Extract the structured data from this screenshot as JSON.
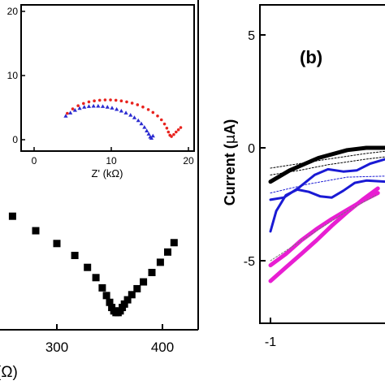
{
  "chart_data": [
    {
      "id": "left-main",
      "type": "scatter",
      "xlabel": "(Ω)",
      "x_ticks": [
        300,
        400
      ],
      "x_tick_labels": [
        "300",
        "400"
      ],
      "series": [
        {
          "color": "#000000",
          "marker": "square",
          "points": [
            [
              258,
              58
            ],
            [
              280,
              49.5
            ],
            [
              300,
              42
            ],
            [
              317,
              35
            ],
            [
              329,
              28
            ],
            [
              337,
              22
            ],
            [
              343,
              16
            ],
            [
              347,
              11.5
            ],
            [
              350,
              7.5
            ],
            [
              352,
              4.5
            ],
            [
              354,
              2.5
            ],
            [
              356,
              1.5
            ],
            [
              358,
              1.5
            ],
            [
              360,
              2.5
            ],
            [
              362,
              4.5
            ],
            [
              364,
              6.5
            ],
            [
              367,
              9
            ],
            [
              371,
              12
            ],
            [
              376,
              15.5
            ],
            [
              382,
              19.5
            ],
            [
              390,
              25
            ],
            [
              398,
              31
            ],
            [
              405,
              37
            ],
            [
              411,
              42.5
            ]
          ]
        }
      ]
    },
    {
      "id": "inset",
      "type": "scatter",
      "xlabel": "Z' (kΩ)",
      "x_ticks": [
        0,
        10,
        20
      ],
      "x_tick_labels": [
        "0",
        "10",
        "20"
      ],
      "y_ticks": [
        0,
        10,
        20
      ],
      "y_tick_labels": [
        "0",
        "10",
        "20"
      ],
      "xlim": [
        -2,
        21
      ],
      "ylim": [
        -1.8,
        21
      ],
      "series": [
        {
          "color": "#e8231e",
          "marker": "circle",
          "points": [
            [
              4.3,
              4.1
            ],
            [
              5.0,
              4.8
            ],
            [
              5.7,
              5.3
            ],
            [
              6.4,
              5.65
            ],
            [
              7.1,
              5.9
            ],
            [
              7.8,
              6.05
            ],
            [
              8.5,
              6.15
            ],
            [
              9.2,
              6.2
            ],
            [
              9.9,
              6.2
            ],
            [
              10.6,
              6.15
            ],
            [
              11.3,
              6.05
            ],
            [
              12.0,
              5.9
            ],
            [
              12.7,
              5.7
            ],
            [
              13.4,
              5.45
            ],
            [
              14.1,
              5.1
            ],
            [
              14.8,
              4.7
            ],
            [
              15.4,
              4.25
            ],
            [
              16.0,
              3.7
            ],
            [
              16.5,
              3.1
            ],
            [
              16.9,
              2.45
            ],
            [
              17.2,
              1.8
            ],
            [
              17.4,
              1.2
            ],
            [
              17.6,
              0.7
            ],
            [
              17.8,
              0.5
            ],
            [
              18.1,
              0.8
            ],
            [
              18.4,
              1.2
            ],
            [
              18.7,
              1.55
            ],
            [
              19.0,
              1.9
            ]
          ]
        },
        {
          "color": "#2b2bd0",
          "marker": "triangle",
          "points": [
            [
              4.1,
              3.7
            ],
            [
              4.7,
              4.2
            ],
            [
              5.3,
              4.6
            ],
            [
              5.9,
              4.9
            ],
            [
              6.5,
              5.1
            ],
            [
              7.1,
              5.2
            ],
            [
              7.7,
              5.25
            ],
            [
              8.3,
              5.25
            ],
            [
              8.9,
              5.2
            ],
            [
              9.5,
              5.1
            ],
            [
              10.1,
              4.95
            ],
            [
              10.7,
              4.75
            ],
            [
              11.3,
              4.5
            ],
            [
              11.9,
              4.2
            ],
            [
              12.5,
              3.85
            ],
            [
              13.0,
              3.45
            ],
            [
              13.5,
              3.0
            ],
            [
              13.9,
              2.5
            ],
            [
              14.3,
              1.95
            ],
            [
              14.6,
              1.4
            ],
            [
              14.85,
              0.9
            ],
            [
              15.05,
              0.45
            ],
            [
              15.2,
              0.25
            ],
            [
              15.4,
              0.6
            ]
          ]
        }
      ]
    },
    {
      "id": "right-b",
      "type": "line",
      "panel_label": "(b)",
      "ylabel_prefix": "Current (",
      "ylabel_mu": "μ",
      "ylabel_suffix": "A)",
      "x_ticks": [
        -1
      ],
      "x_tick_labels": [
        "-1"
      ],
      "y_ticks": [
        5,
        0,
        -5
      ],
      "y_tick_labels": [
        "5",
        "0",
        "-5"
      ],
      "xlim": [
        -1.1,
        -0.4
      ],
      "ylim": [
        -7.8,
        6.9
      ],
      "series": [
        {
          "color": "#000000",
          "width": 5,
          "points": [
            [
              -1.0,
              -1.5
            ],
            [
              -0.9,
              -1.0
            ],
            [
              -0.75,
              -0.45
            ],
            [
              -0.6,
              -0.1
            ],
            [
              -0.5,
              0.0
            ],
            [
              -0.4,
              0.0
            ]
          ]
        },
        {
          "color": "#000000",
          "width": 1,
          "dash": "2,2",
          "points": [
            [
              -1.0,
              -0.9
            ],
            [
              -0.85,
              -0.7
            ],
            [
              -0.7,
              -0.5
            ],
            [
              -0.5,
              -0.25
            ],
            [
              -0.4,
              -0.15
            ]
          ]
        },
        {
          "color": "#000000",
          "width": 1,
          "dash": "2,2",
          "points": [
            [
              -1.0,
              -1.2
            ],
            [
              -0.85,
              -1.0
            ],
            [
              -0.7,
              -0.75
            ],
            [
              -0.5,
              -0.5
            ],
            [
              -0.4,
              -0.4
            ]
          ]
        },
        {
          "color": "#1a1ad4",
          "width": 3,
          "points": [
            [
              -1.0,
              -2.3
            ],
            [
              -0.93,
              -2.2
            ],
            [
              -0.85,
              -1.75
            ],
            [
              -0.77,
              -1.2
            ],
            [
              -0.7,
              -0.95
            ],
            [
              -0.62,
              -1.05
            ],
            [
              -0.55,
              -1.0
            ],
            [
              -0.48,
              -0.7
            ],
            [
              -0.4,
              -0.5
            ]
          ]
        },
        {
          "color": "#1a1ad4",
          "width": 3,
          "points": [
            [
              -1.0,
              -3.7
            ],
            [
              -0.97,
              -2.8
            ],
            [
              -0.92,
              -2.1
            ],
            [
              -0.86,
              -1.85
            ],
            [
              -0.8,
              -1.95
            ],
            [
              -0.74,
              -2.15
            ],
            [
              -0.68,
              -2.2
            ],
            [
              -0.62,
              -1.9
            ],
            [
              -0.56,
              -1.55
            ],
            [
              -0.5,
              -1.45
            ],
            [
              -0.4,
              -1.5
            ]
          ]
        },
        {
          "color": "#1a1ad4",
          "width": 1,
          "dash": "2,2",
          "points": [
            [
              -1.0,
              -2.0
            ],
            [
              -0.8,
              -1.6
            ],
            [
              -0.6,
              -1.3
            ],
            [
              -0.4,
              -1.25
            ]
          ]
        },
        {
          "color": "#e81ed2",
          "width": 5,
          "points": [
            [
              -1.0,
              -5.2
            ],
            [
              -0.92,
              -4.7
            ],
            [
              -0.84,
              -4.1
            ],
            [
              -0.76,
              -3.6
            ],
            [
              -0.68,
              -3.15
            ],
            [
              -0.6,
              -2.75
            ],
            [
              -0.52,
              -2.35
            ],
            [
              -0.44,
              -2.0
            ]
          ]
        },
        {
          "color": "#e81ed2",
          "width": 5,
          "points": [
            [
              -1.0,
              -5.9
            ],
            [
              -0.92,
              -5.3
            ],
            [
              -0.84,
              -4.7
            ],
            [
              -0.76,
              -4.1
            ],
            [
              -0.68,
              -3.45
            ],
            [
              -0.6,
              -2.85
            ],
            [
              -0.52,
              -2.3
            ],
            [
              -0.44,
              -1.8
            ]
          ]
        },
        {
          "color": "#777777",
          "width": 1,
          "dash": "2,2",
          "points": [
            [
              -1.0,
              -5.0
            ],
            [
              -0.8,
              -3.9
            ],
            [
              -0.6,
              -2.8
            ],
            [
              -0.45,
              -2.1
            ]
          ]
        }
      ]
    }
  ]
}
